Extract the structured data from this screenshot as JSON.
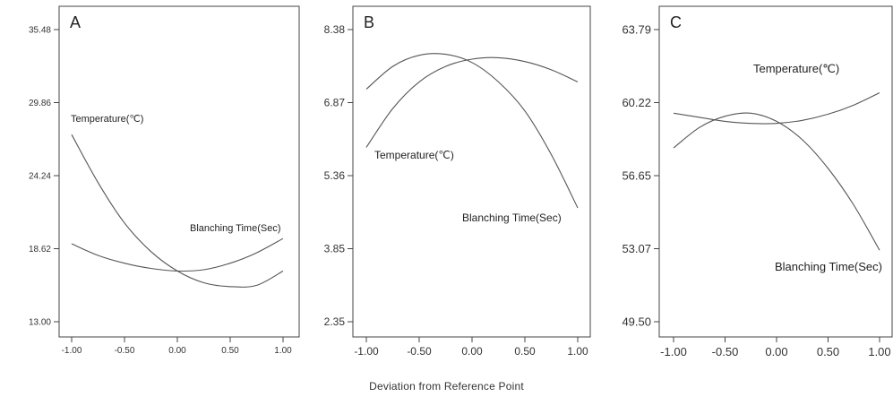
{
  "xlabel": "Deviation  from Reference Point",
  "chart_data": [
    {
      "type": "line",
      "title": "A",
      "x_ticks": [
        "-1.00",
        "-0.50",
        "0.00",
        "0.50",
        "1.00"
      ],
      "y_ticks": [
        "13.00",
        "18.62",
        "24.24",
        "29.86",
        "35.48"
      ],
      "xlim": [
        -1,
        1
      ],
      "ylim": [
        13.0,
        35.48
      ],
      "grid": false,
      "series": [
        {
          "name": "Temperature(℃)",
          "x": [
            -1.0,
            -0.75,
            -0.5,
            -0.25,
            0.0,
            0.25,
            0.5,
            0.75,
            1.0
          ],
          "y": [
            27.4,
            23.7,
            20.6,
            18.4,
            16.9,
            16.0,
            15.7,
            15.8,
            16.9
          ]
        },
        {
          "name": "Blanching Time(Sec)",
          "x": [
            -1.0,
            -0.75,
            -0.5,
            -0.25,
            0.0,
            0.25,
            0.5,
            0.75,
            1.0
          ],
          "y": [
            19.0,
            18.1,
            17.5,
            17.1,
            16.9,
            17.0,
            17.5,
            18.3,
            19.4
          ]
        }
      ]
    },
    {
      "type": "line",
      "title": "B",
      "x_ticks": [
        "-1.00",
        "-0.50",
        "0.00",
        "0.50",
        "1.00"
      ],
      "y_ticks": [
        "2.35",
        "3.85",
        "5.36",
        "6.87",
        "8.38"
      ],
      "xlim": [
        -1,
        1
      ],
      "ylim": [
        2.35,
        8.38
      ],
      "grid": false,
      "series": [
        {
          "name": "Temperature(℃)",
          "x": [
            -1.0,
            -0.75,
            -0.5,
            -0.25,
            0.0,
            0.25,
            0.5,
            0.75,
            1.0
          ],
          "y": [
            5.95,
            6.75,
            7.3,
            7.62,
            7.77,
            7.8,
            7.72,
            7.55,
            7.3
          ]
        },
        {
          "name": "Blanching Time(Sec)",
          "x": [
            -1.0,
            -0.75,
            -0.5,
            -0.25,
            0.0,
            0.25,
            0.5,
            0.75,
            1.0
          ],
          "y": [
            7.15,
            7.62,
            7.85,
            7.87,
            7.7,
            7.3,
            6.7,
            5.8,
            4.7
          ]
        }
      ]
    },
    {
      "type": "line",
      "title": "C",
      "x_ticks": [
        "-1.00",
        "-0.50",
        "0.00",
        "0.50",
        "1.00"
      ],
      "y_ticks": [
        "49.50",
        "53.07",
        "56.65",
        "60.22",
        "63.79"
      ],
      "xlim": [
        -1,
        1
      ],
      "ylim": [
        49.5,
        63.79
      ],
      "grid": false,
      "series": [
        {
          "name": "Temperature(℃)",
          "x": [
            -1.0,
            -0.75,
            -0.5,
            -0.25,
            0.0,
            0.25,
            0.5,
            0.75,
            1.0
          ],
          "y": [
            59.7,
            59.5,
            59.3,
            59.2,
            59.2,
            59.35,
            59.65,
            60.1,
            60.7
          ]
        },
        {
          "name": "Blanching Time(Sec)",
          "x": [
            -1.0,
            -0.75,
            -0.5,
            -0.25,
            0.0,
            0.25,
            0.5,
            0.75,
            1.0
          ],
          "y": [
            58.0,
            59.0,
            59.55,
            59.7,
            59.3,
            58.4,
            57.0,
            55.2,
            53.0
          ]
        }
      ]
    }
  ]
}
